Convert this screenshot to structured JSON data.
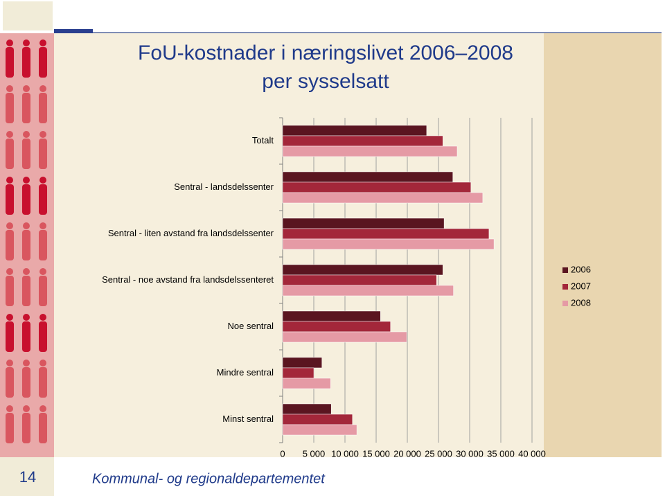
{
  "chart_data": {
    "type": "bar",
    "orientation": "horizontal",
    "title": [
      "FoU-kostnader i næringslivet 2006–2008",
      "per sysselsatt"
    ],
    "categories": [
      "Totalt",
      "Sentral - landsdelssenter",
      "Sentral - liten avstand fra landsdelssenter",
      "Sentral - noe avstand fra landsdelssenteret",
      "Noe sentral",
      "Mindre sentral",
      "Minst sentral"
    ],
    "series": [
      {
        "name": "2006",
        "color": "#5a1520",
        "values": [
          23100,
          27300,
          25900,
          25700,
          15700,
          6300,
          7800
        ]
      },
      {
        "name": "2007",
        "color": "#a3273a",
        "values": [
          25700,
          30200,
          33100,
          24700,
          17300,
          5000,
          11200
        ]
      },
      {
        "name": "2008",
        "color": "#e59aa5",
        "values": [
          28000,
          32100,
          33900,
          27400,
          19900,
          7700,
          11900
        ]
      }
    ],
    "xlim": [
      0,
      40000
    ],
    "xticks": [
      0,
      {
        "value": 5000,
        "label": "5 000"
      },
      {
        "value": 10000,
        "label": "10 000"
      },
      {
        "value": 15000,
        "label": "15 000"
      },
      {
        "value": 20000,
        "label": "20 000"
      },
      {
        "value": 25000,
        "label": "25 000"
      },
      {
        "value": 30000,
        "label": "30 000"
      },
      {
        "value": 35000,
        "label": "35 000"
      },
      {
        "value": 40000,
        "label": "40 000"
      }
    ],
    "grid": true,
    "legend": "right"
  },
  "slide_number": 14,
  "footer": "Kommunal- og regionaldepartementet"
}
